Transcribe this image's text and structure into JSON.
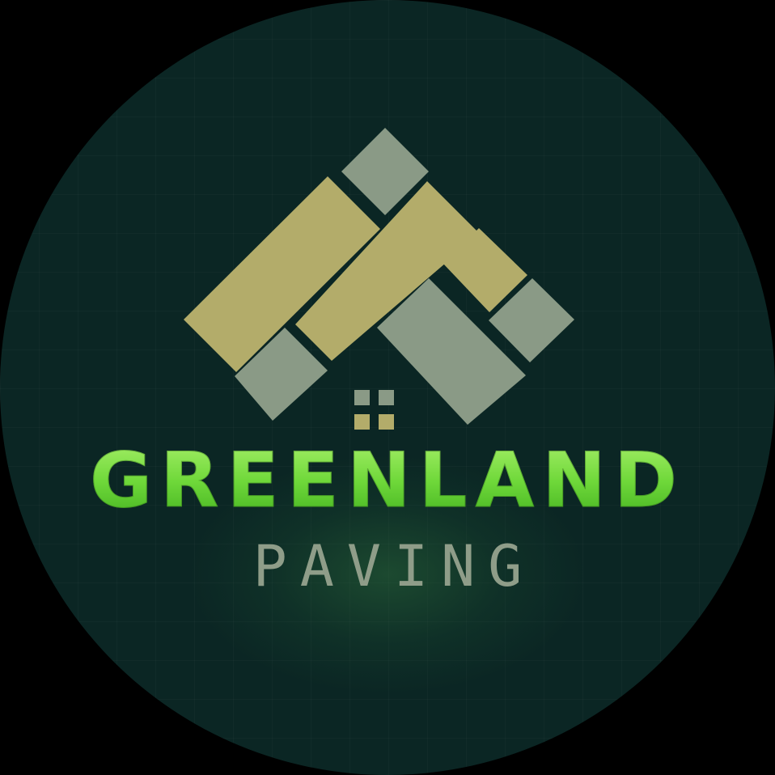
{
  "brand": {
    "name": "GREENLAND",
    "tagline": "PAVING"
  },
  "colors": {
    "background": "#0b2624",
    "tile_tan": "#b3ac6a",
    "tile_sage": "#8a9a86",
    "name_green": "#6fd83a",
    "tagline_grey": "#8f9d89"
  },
  "icons": {
    "logo_mark": "paving-roof-icon",
    "window": "window-icon"
  }
}
